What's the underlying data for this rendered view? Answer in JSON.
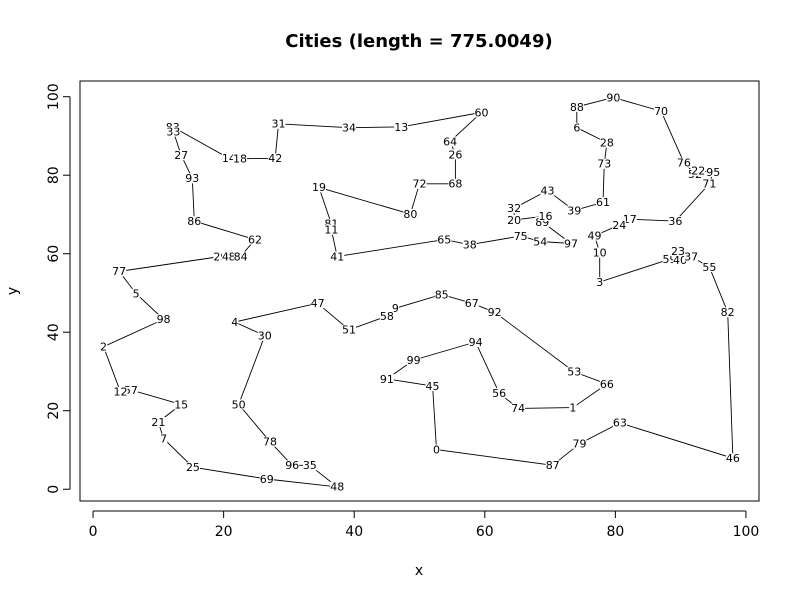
{
  "chart_data": {
    "type": "line",
    "title": "Cities (length = 775.0049)",
    "xlabel": "x",
    "ylabel": "y",
    "xlim": [
      -2,
      102
    ],
    "ylim": [
      -3,
      104
    ],
    "x_ticks": [
      0,
      20,
      40,
      60,
      80,
      100
    ],
    "y_ticks": [
      0,
      20,
      40,
      60,
      80,
      100
    ],
    "x_tick_labels": [
      "0",
      "20",
      "40",
      "60",
      "80",
      "100"
    ],
    "y_tick_labels": [
      "0",
      "20",
      "40",
      "60",
      "80",
      "100"
    ],
    "grid": false,
    "closed": true,
    "points": [
      {
        "label": "83",
        "x": 12.2,
        "y": 92.3
      },
      {
        "label": "14",
        "x": 20.8,
        "y": 84.3
      },
      {
        "label": "18",
        "x": 22.5,
        "y": 84.2
      },
      {
        "label": "42",
        "x": 27.9,
        "y": 84.3
      },
      {
        "label": "31",
        "x": 28.4,
        "y": 93.1
      },
      {
        "label": "34",
        "x": 39.2,
        "y": 92.1
      },
      {
        "label": "13",
        "x": 47.2,
        "y": 92.3
      },
      {
        "label": "60",
        "x": 59.5,
        "y": 96.0
      },
      {
        "label": "64",
        "x": 54.7,
        "y": 88.6
      },
      {
        "label": "26",
        "x": 55.5,
        "y": 85.3
      },
      {
        "label": "68",
        "x": 55.5,
        "y": 77.8
      },
      {
        "label": "72",
        "x": 50.0,
        "y": 77.8
      },
      {
        "label": "80",
        "x": 48.6,
        "y": 70.1
      },
      {
        "label": "19",
        "x": 34.6,
        "y": 76.9
      },
      {
        "label": "81",
        "x": 36.5,
        "y": 67.6
      },
      {
        "label": "11",
        "x": 36.5,
        "y": 66.1
      },
      {
        "label": "41",
        "x": 37.4,
        "y": 59.3
      },
      {
        "label": "65",
        "x": 53.8,
        "y": 63.6
      },
      {
        "label": "38",
        "x": 57.7,
        "y": 62.3
      },
      {
        "label": "75",
        "x": 65.5,
        "y": 64.5
      },
      {
        "label": "54",
        "x": 68.5,
        "y": 63.1
      },
      {
        "label": "97",
        "x": 73.2,
        "y": 62.6
      },
      {
        "label": "89",
        "x": 68.8,
        "y": 68.1
      },
      {
        "label": "16",
        "x": 69.3,
        "y": 69.6
      },
      {
        "label": "20",
        "x": 64.5,
        "y": 68.6
      },
      {
        "label": "32",
        "x": 64.5,
        "y": 71.6
      },
      {
        "label": "43",
        "x": 69.6,
        "y": 76.1
      },
      {
        "label": "39",
        "x": 73.7,
        "y": 71.0
      },
      {
        "label": "61",
        "x": 78.1,
        "y": 73.1
      },
      {
        "label": "73",
        "x": 78.3,
        "y": 82.9
      },
      {
        "label": "28",
        "x": 78.7,
        "y": 88.3
      },
      {
        "label": "6",
        "x": 74.1,
        "y": 92.1
      },
      {
        "label": "88",
        "x": 74.1,
        "y": 97.4
      },
      {
        "label": "90",
        "x": 79.7,
        "y": 99.8
      },
      {
        "label": "70",
        "x": 87.0,
        "y": 96.3
      },
      {
        "label": "76",
        "x": 90.5,
        "y": 83.2
      },
      {
        "label": "52",
        "x": 92.2,
        "y": 80.3
      },
      {
        "label": "22",
        "x": 92.7,
        "y": 81.1
      },
      {
        "label": "95",
        "x": 95.0,
        "y": 80.8
      },
      {
        "label": "71",
        "x": 94.4,
        "y": 77.8
      },
      {
        "label": "36",
        "x": 89.2,
        "y": 68.3
      },
      {
        "label": "17",
        "x": 82.2,
        "y": 68.8
      },
      {
        "label": "24",
        "x": 80.6,
        "y": 67.3
      },
      {
        "label": "49",
        "x": 76.8,
        "y": 64.6
      },
      {
        "label": "10",
        "x": 77.6,
        "y": 60.3
      },
      {
        "label": "3",
        "x": 77.6,
        "y": 52.8
      },
      {
        "label": "59",
        "x": 88.3,
        "y": 58.6
      },
      {
        "label": "23",
        "x": 89.6,
        "y": 60.6
      },
      {
        "label": "40",
        "x": 89.9,
        "y": 58.3
      },
      {
        "label": "37",
        "x": 91.6,
        "y": 59.3
      },
      {
        "label": "55",
        "x": 94.4,
        "y": 56.6
      },
      {
        "label": "82",
        "x": 97.2,
        "y": 45.1
      },
      {
        "label": "46",
        "x": 98.0,
        "y": 7.9
      },
      {
        "label": "63",
        "x": 80.7,
        "y": 16.9
      },
      {
        "label": "79",
        "x": 74.5,
        "y": 11.6
      },
      {
        "label": "87",
        "x": 70.4,
        "y": 6.1
      },
      {
        "label": "0",
        "x": 52.6,
        "y": 10.1
      },
      {
        "label": "45",
        "x": 52.0,
        "y": 26.3
      },
      {
        "label": "91",
        "x": 45.0,
        "y": 28.1
      },
      {
        "label": "99",
        "x": 49.1,
        "y": 32.9
      },
      {
        "label": "94",
        "x": 58.6,
        "y": 37.5
      },
      {
        "label": "56",
        "x": 62.2,
        "y": 24.5
      },
      {
        "label": "74",
        "x": 65.1,
        "y": 20.6
      },
      {
        "label": "1",
        "x": 73.5,
        "y": 20.8
      },
      {
        "label": "66",
        "x": 78.7,
        "y": 26.8
      },
      {
        "label": "53",
        "x": 73.7,
        "y": 29.9
      },
      {
        "label": "92",
        "x": 61.5,
        "y": 45.1
      },
      {
        "label": "67",
        "x": 58.0,
        "y": 47.4
      },
      {
        "label": "85",
        "x": 53.4,
        "y": 49.6
      },
      {
        "label": "9",
        "x": 46.3,
        "y": 46.1
      },
      {
        "label": "58",
        "x": 45.0,
        "y": 44.1
      },
      {
        "label": "51",
        "x": 39.2,
        "y": 40.6
      },
      {
        "label": "47",
        "x": 34.4,
        "y": 47.4
      },
      {
        "label": "4",
        "x": 21.7,
        "y": 42.6
      },
      {
        "label": "30",
        "x": 26.3,
        "y": 39.1
      },
      {
        "label": "50",
        "x": 22.3,
        "y": 21.6
      },
      {
        "label": "78",
        "x": 27.1,
        "y": 12.1
      },
      {
        "label": "96",
        "x": 30.5,
        "y": 6.1
      },
      {
        "label": "35",
        "x": 33.2,
        "y": 6.1
      },
      {
        "label": "48",
        "x": 37.4,
        "y": 0.6
      },
      {
        "label": "69",
        "x": 26.6,
        "y": 2.6
      },
      {
        "label": "25",
        "x": 15.3,
        "y": 5.6
      },
      {
        "label": "7",
        "x": 10.8,
        "y": 12.9
      },
      {
        "label": "21",
        "x": 10.0,
        "y": 17.1
      },
      {
        "label": "15",
        "x": 13.5,
        "y": 21.6
      },
      {
        "label": "57",
        "x": 5.8,
        "y": 25.3
      },
      {
        "label": "12",
        "x": 4.2,
        "y": 24.8
      },
      {
        "label": "2",
        "x": 1.6,
        "y": 36.3
      },
      {
        "label": "98",
        "x": 10.8,
        "y": 43.3
      },
      {
        "label": "5",
        "x": 6.6,
        "y": 49.8
      },
      {
        "label": "77",
        "x": 4.0,
        "y": 55.5
      },
      {
        "label": "29",
        "x": 19.5,
        "y": 59.3
      },
      {
        "label": "44",
        "x": 20.8,
        "y": 59.3
      },
      {
        "label": "8",
        "x": 21.3,
        "y": 59.3
      },
      {
        "label": "84",
        "x": 22.6,
        "y": 59.3
      },
      {
        "label": "62",
        "x": 24.8,
        "y": 63.6
      },
      {
        "label": "86",
        "x": 15.5,
        "y": 68.3
      },
      {
        "label": "93",
        "x": 15.2,
        "y": 79.2
      },
      {
        "label": "27",
        "x": 13.5,
        "y": 85.1
      },
      {
        "label": "33",
        "x": 12.3,
        "y": 91.1
      }
    ]
  }
}
